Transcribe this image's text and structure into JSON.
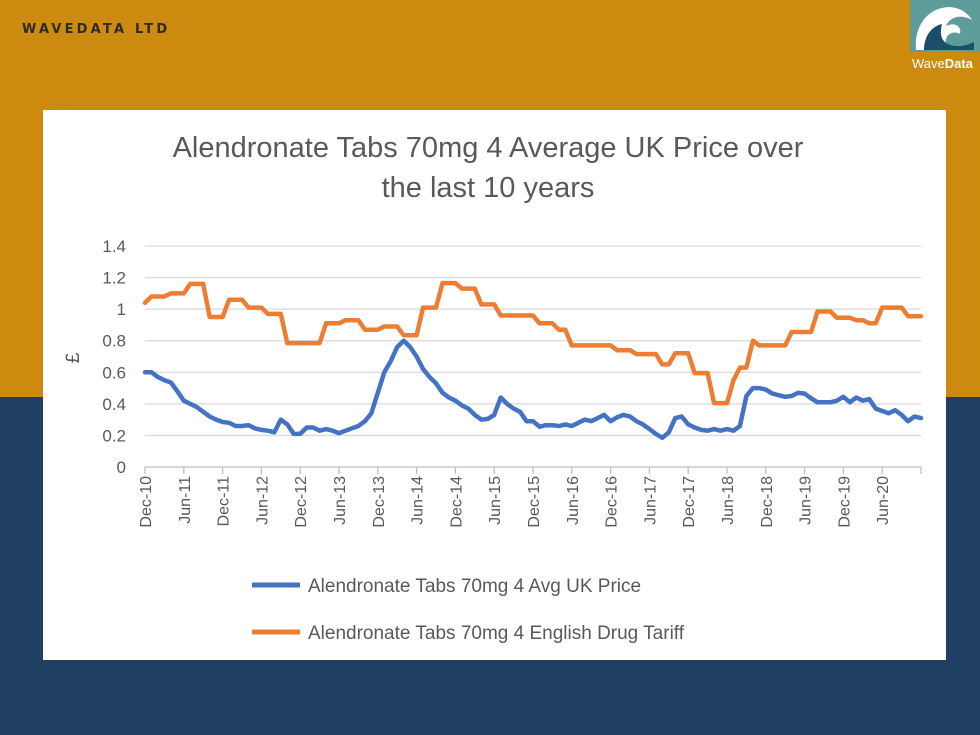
{
  "header": {
    "brand": "WAVEDATA LTD",
    "logo_text": "WaveData"
  },
  "colors": {
    "top_band": "#CC8B0F",
    "bottom_band": "#1F4062",
    "series_avg": "#4472C4",
    "series_tariff": "#ED7D31"
  },
  "chart_data": {
    "type": "line",
    "title_line1": "Alendronate Tabs 70mg 4 Average UK Price over",
    "title_line2": "the last 10 years",
    "ylabel": "£",
    "xlabel": "",
    "ylim": [
      0,
      1.4
    ],
    "yticks": [
      "0",
      "0.2",
      "0.4",
      "0.6",
      "0.8",
      "1",
      "1.2",
      "1.4"
    ],
    "xtick_labels": [
      "Dec-10",
      "Jun-11",
      "Dec-11",
      "Jun-12",
      "Dec-12",
      "Jun-13",
      "Dec-13",
      "Jun-14",
      "Dec-14",
      "Jun-15",
      "Dec-15",
      "Jun-16",
      "Dec-16",
      "Jun-17",
      "Dec-17",
      "Jun-18",
      "Dec-18",
      "Jun-19",
      "Dec-19",
      "Jun-20"
    ],
    "x_start": "Dec-10",
    "x_frequency": "monthly",
    "grid": "horizontal",
    "legend_position": "bottom",
    "series": [
      {
        "name": "Alendronate Tabs 70mg 4 Avg UK Price",
        "color": "#4472C4",
        "values": [
          0.6,
          0.6,
          0.57,
          0.55,
          0.535,
          0.48,
          0.42,
          0.4,
          0.38,
          0.35,
          0.32,
          0.3,
          0.285,
          0.28,
          0.26,
          0.26,
          0.265,
          0.245,
          0.235,
          0.23,
          0.22,
          0.3,
          0.27,
          0.21,
          0.21,
          0.25,
          0.25,
          0.23,
          0.24,
          0.23,
          0.215,
          0.23,
          0.245,
          0.26,
          0.29,
          0.34,
          0.47,
          0.6,
          0.67,
          0.76,
          0.8,
          0.76,
          0.7,
          0.62,
          0.57,
          0.53,
          0.47,
          0.44,
          0.42,
          0.39,
          0.37,
          0.33,
          0.3,
          0.305,
          0.33,
          0.44,
          0.4,
          0.37,
          0.35,
          0.29,
          0.29,
          0.255,
          0.265,
          0.265,
          0.26,
          0.27,
          0.26,
          0.28,
          0.3,
          0.29,
          0.31,
          0.33,
          0.29,
          0.315,
          0.33,
          0.32,
          0.29,
          0.27,
          0.24,
          0.21,
          0.185,
          0.22,
          0.31,
          0.32,
          0.27,
          0.25,
          0.235,
          0.23,
          0.24,
          0.23,
          0.24,
          0.23,
          0.26,
          0.45,
          0.5,
          0.5,
          0.49,
          0.465,
          0.455,
          0.445,
          0.45,
          0.47,
          0.465,
          0.435,
          0.41,
          0.41,
          0.41,
          0.42,
          0.445,
          0.41,
          0.44,
          0.42,
          0.43,
          0.37,
          0.355,
          0.34,
          0.36,
          0.33,
          0.29,
          0.32,
          0.31
        ]
      },
      {
        "name": "Alendronate Tabs 70mg 4 English Drug Tariff",
        "color": "#ED7D31",
        "values": [
          1.04,
          1.08,
          1.08,
          1.08,
          1.1,
          1.1,
          1.1,
          1.16,
          1.16,
          1.16,
          0.95,
          0.95,
          0.95,
          1.06,
          1.06,
          1.06,
          1.01,
          1.01,
          1.01,
          0.97,
          0.97,
          0.97,
          0.785,
          0.785,
          0.785,
          0.785,
          0.785,
          0.785,
          0.91,
          0.91,
          0.91,
          0.93,
          0.93,
          0.93,
          0.87,
          0.87,
          0.87,
          0.89,
          0.89,
          0.89,
          0.835,
          0.835,
          0.835,
          1.01,
          1.01,
          1.01,
          1.165,
          1.165,
          1.165,
          1.13,
          1.13,
          1.13,
          1.03,
          1.03,
          1.03,
          0.96,
          0.96,
          0.96,
          0.96,
          0.96,
          0.96,
          0.91,
          0.91,
          0.91,
          0.87,
          0.87,
          0.77,
          0.77,
          0.77,
          0.77,
          0.77,
          0.77,
          0.77,
          0.74,
          0.74,
          0.74,
          0.715,
          0.715,
          0.715,
          0.715,
          0.65,
          0.65,
          0.72,
          0.72,
          0.72,
          0.595,
          0.595,
          0.595,
          0.405,
          0.405,
          0.405,
          0.55,
          0.63,
          0.63,
          0.8,
          0.77,
          0.77,
          0.77,
          0.77,
          0.77,
          0.855,
          0.855,
          0.855,
          0.855,
          0.985,
          0.985,
          0.985,
          0.945,
          0.945,
          0.945,
          0.93,
          0.93,
          0.91,
          0.91,
          1.01,
          1.01,
          1.01,
          1.01,
          0.955,
          0.955,
          0.955
        ]
      }
    ]
  }
}
